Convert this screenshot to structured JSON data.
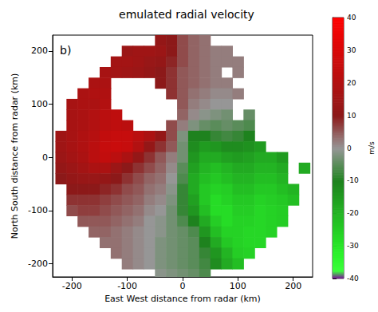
{
  "chart_data": {
    "type": "heatmap",
    "title": "emulated radial velocity",
    "annotation": "b)",
    "x_label": "East West distance from radar (km)",
    "y_label": "North South distance from radar (km)",
    "x": [
      -220,
      -200,
      -180,
      -160,
      -140,
      -120,
      -100,
      -80,
      -60,
      -40,
      -20,
      0,
      20,
      40,
      60,
      80,
      100,
      120,
      140,
      160,
      180,
      200,
      220
    ],
    "y": [
      220,
      200,
      180,
      160,
      140,
      120,
      100,
      80,
      60,
      40,
      20,
      0,
      -20,
      -40,
      -60,
      -80,
      -100,
      -120,
      -140,
      -160,
      -180,
      -200,
      -220
    ],
    "cells": [
      [
        null,
        null,
        null,
        null,
        null,
        null,
        null,
        null,
        null,
        12,
        10,
        6,
        4,
        3,
        null,
        null,
        null,
        null,
        null,
        null,
        null,
        null,
        null
      ],
      [
        null,
        null,
        null,
        null,
        null,
        null,
        14,
        15,
        15,
        14,
        10,
        6,
        4,
        3,
        2,
        2,
        null,
        null,
        null,
        null,
        null,
        null,
        null
      ],
      [
        null,
        null,
        null,
        null,
        null,
        16,
        16,
        15,
        13,
        12,
        9,
        6,
        4,
        3,
        2,
        2,
        2,
        null,
        null,
        null,
        null,
        null,
        null
      ],
      [
        null,
        null,
        null,
        null,
        17,
        16,
        15,
        14,
        12,
        10,
        8,
        5,
        4,
        3,
        2,
        null,
        2,
        null,
        null,
        null,
        null,
        null,
        null
      ],
      [
        null,
        null,
        null,
        18,
        18,
        null,
        null,
        null,
        null,
        10,
        8,
        5,
        4,
        3,
        2,
        2,
        null,
        null,
        null,
        null,
        null,
        null,
        null
      ],
      [
        null,
        null,
        18,
        19,
        19,
        null,
        null,
        null,
        null,
        null,
        8,
        5,
        3,
        2,
        1,
        1,
        2,
        null,
        null,
        null,
        null,
        null,
        null
      ],
      [
        null,
        17,
        18,
        18,
        20,
        null,
        null,
        null,
        null,
        null,
        null,
        5,
        2,
        1,
        0,
        0,
        null,
        null,
        null,
        null,
        null,
        null,
        null
      ],
      [
        null,
        17,
        18,
        20,
        22,
        23,
        null,
        null,
        null,
        null,
        null,
        4,
        1,
        -1,
        -2,
        -3,
        null,
        -4,
        null,
        null,
        null,
        null,
        null
      ],
      [
        null,
        17,
        18,
        20,
        22,
        23,
        22,
        null,
        null,
        null,
        6,
        2,
        -2,
        -4,
        -5,
        -4,
        -5,
        -6,
        null,
        null,
        null,
        null,
        null
      ],
      [
        15,
        17,
        19,
        21,
        24,
        25,
        25,
        22,
        18,
        12,
        6,
        -2,
        -10,
        -10,
        -8,
        -7,
        -8,
        -10,
        null,
        null,
        null,
        null,
        null
      ],
      [
        15,
        17,
        19,
        22,
        25,
        26,
        25,
        20,
        12,
        8,
        5,
        -3,
        -12,
        -15,
        -14,
        -12,
        -12,
        -13,
        -15,
        null,
        null,
        null,
        null
      ],
      [
        14,
        16,
        18,
        22,
        24,
        22,
        18,
        12,
        8,
        5,
        2,
        -3,
        -14,
        -18,
        -18,
        -16,
        -15,
        -16,
        -18,
        -18,
        -15,
        null,
        null
      ],
      [
        12,
        14,
        16,
        18,
        18,
        14,
        10,
        8,
        6,
        4,
        1,
        -5,
        -16,
        -20,
        -22,
        -20,
        -18,
        -18,
        -20,
        -20,
        -18,
        null,
        -18
      ],
      [
        10,
        12,
        13,
        13,
        12,
        10,
        8,
        6,
        4,
        3,
        0,
        -6,
        -18,
        -22,
        -24,
        -22,
        -20,
        -20,
        -22,
        -22,
        -20,
        null,
        null
      ],
      [
        null,
        10,
        10,
        10,
        9,
        8,
        6,
        5,
        3,
        2,
        -1,
        -8,
        -18,
        -24,
        -26,
        -25,
        -22,
        -22,
        -24,
        -24,
        -22,
        -20,
        null
      ],
      [
        null,
        8,
        8,
        8,
        7,
        6,
        5,
        4,
        2,
        1,
        -2,
        -8,
        -16,
        -24,
        -28,
        -26,
        -24,
        -24,
        -26,
        -25,
        -24,
        -22,
        null
      ],
      [
        null,
        6,
        7,
        7,
        6,
        5,
        4,
        3,
        1,
        0,
        -3,
        -8,
        -14,
        -22,
        -28,
        -28,
        -25,
        -25,
        -27,
        -26,
        -25,
        null,
        null
      ],
      [
        null,
        null,
        5,
        5,
        5,
        4,
        3,
        2,
        0,
        -1,
        -3,
        -6,
        -10,
        -18,
        -25,
        -28,
        -26,
        -26,
        -27,
        -26,
        -25,
        null,
        null
      ],
      [
        null,
        null,
        null,
        4,
        4,
        3,
        2,
        1,
        0,
        -1,
        -3,
        -4,
        -6,
        -14,
        -22,
        -26,
        -26,
        -27,
        -27,
        -26,
        null,
        null,
        null
      ],
      [
        null,
        null,
        null,
        null,
        3,
        3,
        2,
        1,
        0,
        -2,
        -3,
        -4,
        -5,
        -10,
        -18,
        -24,
        -26,
        -27,
        -27,
        null,
        null,
        null,
        null
      ],
      [
        null,
        null,
        null,
        null,
        null,
        3,
        2,
        1,
        0,
        -2,
        -3,
        -4,
        -5,
        -8,
        -14,
        -20,
        -25,
        -26,
        null,
        null,
        null,
        null,
        null
      ],
      [
        null,
        null,
        null,
        null,
        null,
        null,
        2,
        1,
        0,
        -2,
        -3,
        -4,
        -5,
        -7,
        -12,
        -18,
        -22,
        null,
        null,
        null,
        null,
        null,
        null
      ],
      [
        null,
        null,
        null,
        null,
        null,
        null,
        null,
        null,
        null,
        -1,
        -2,
        -3,
        -4,
        -6,
        null,
        null,
        null,
        null,
        null,
        null,
        null,
        null,
        null
      ]
    ],
    "xlim": [
      -235,
      235
    ],
    "ylim": [
      -225,
      230
    ],
    "xticks": [
      -200,
      -100,
      0,
      100,
      200
    ],
    "yticks": [
      -200,
      -100,
      0,
      100,
      200
    ],
    "colorbar": {
      "range": [
        -40,
        40
      ],
      "ticks": [
        -40,
        -30,
        -20,
        -10,
        0,
        10,
        20,
        30,
        40
      ],
      "label": "m/s"
    }
  }
}
